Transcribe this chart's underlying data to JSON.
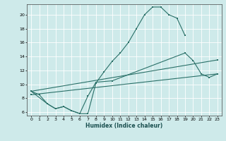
{
  "title": "",
  "xlabel": "Humidex (Indice chaleur)",
  "bg_color": "#ceeaea",
  "grid_color": "#b0d8d8",
  "line_color": "#2a7068",
  "xlim": [
    -0.5,
    23.5
  ],
  "ylim": [
    5.5,
    21.5
  ],
  "xticks": [
    0,
    1,
    2,
    3,
    4,
    5,
    6,
    7,
    8,
    9,
    10,
    11,
    12,
    13,
    14,
    15,
    16,
    17,
    18,
    19,
    20,
    21,
    22,
    23
  ],
  "yticks": [
    6,
    8,
    10,
    12,
    14,
    16,
    18,
    20
  ],
  "line1_x": [
    0,
    1,
    2,
    3,
    4,
    5,
    6,
    7,
    8,
    9,
    10,
    11,
    12,
    13,
    14,
    15,
    16,
    17,
    18,
    19
  ],
  "line1_y": [
    9.0,
    8.5,
    7.2,
    6.5,
    6.8,
    6.2,
    5.8,
    5.8,
    10.2,
    11.8,
    13.3,
    14.5,
    16.0,
    18.0,
    20.0,
    21.1,
    21.1,
    20.0,
    19.5,
    17.0
  ],
  "line2_x": [
    0,
    2,
    3,
    4,
    5,
    6,
    7,
    8,
    10,
    19,
    20,
    21,
    22,
    23
  ],
  "line2_y": [
    9.0,
    7.2,
    6.5,
    6.8,
    6.2,
    5.8,
    8.3,
    10.3,
    10.5,
    14.5,
    13.4,
    11.5,
    11.0,
    11.5
  ],
  "line3_x": [
    0,
    23
  ],
  "line3_y": [
    8.5,
    11.5
  ],
  "line4_x": [
    0,
    23
  ],
  "line4_y": [
    9.0,
    13.5
  ]
}
